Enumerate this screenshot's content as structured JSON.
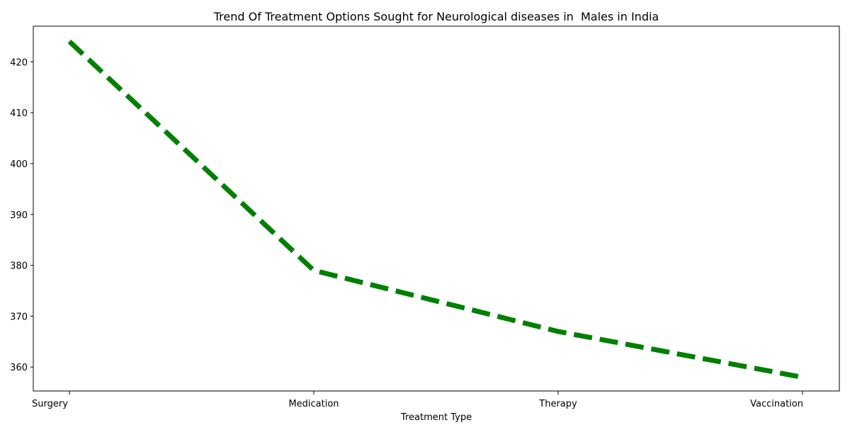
{
  "chart_data": {
    "type": "line",
    "title": "Trend Of Treatment Options Sought for Neurological diseases in  Males in India",
    "xlabel": "Treatment Type",
    "ylabel": "",
    "categories": [
      "Surgery",
      "Medication",
      "Therapy",
      "Vaccination"
    ],
    "series": [
      {
        "values": [
          424,
          379,
          367,
          358
        ],
        "color": "#008000",
        "line_style": "dashed"
      }
    ],
    "ylim": [
      355.3,
      427.0
    ],
    "yticks": [
      360,
      370,
      380,
      390,
      400,
      410,
      420
    ],
    "grid": false,
    "legend": "none"
  }
}
